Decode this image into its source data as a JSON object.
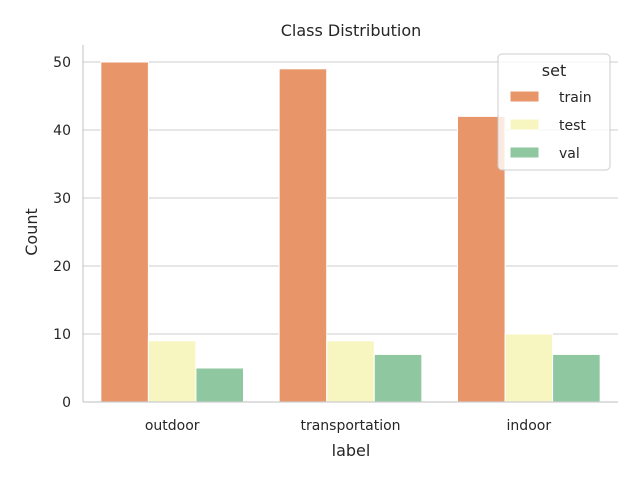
{
  "chart_data": {
    "type": "bar",
    "title": "Class Distribution",
    "xlabel": "label",
    "ylabel": "Count",
    "categories": [
      "outdoor",
      "transportation",
      "indoor"
    ],
    "series": [
      {
        "name": "train",
        "color": "#e8956a",
        "values": [
          50,
          49,
          42
        ]
      },
      {
        "name": "test",
        "color": "#f8f6c0",
        "values": [
          9,
          9,
          10
        ]
      },
      {
        "name": "val",
        "color": "#8fc7a1",
        "values": [
          5,
          7,
          7
        ]
      }
    ],
    "ylim": [
      0,
      52.5
    ],
    "yticks": [
      0,
      10,
      20,
      30,
      40,
      50
    ],
    "grid": true,
    "legend": {
      "title": "set",
      "position": "top-right"
    }
  }
}
